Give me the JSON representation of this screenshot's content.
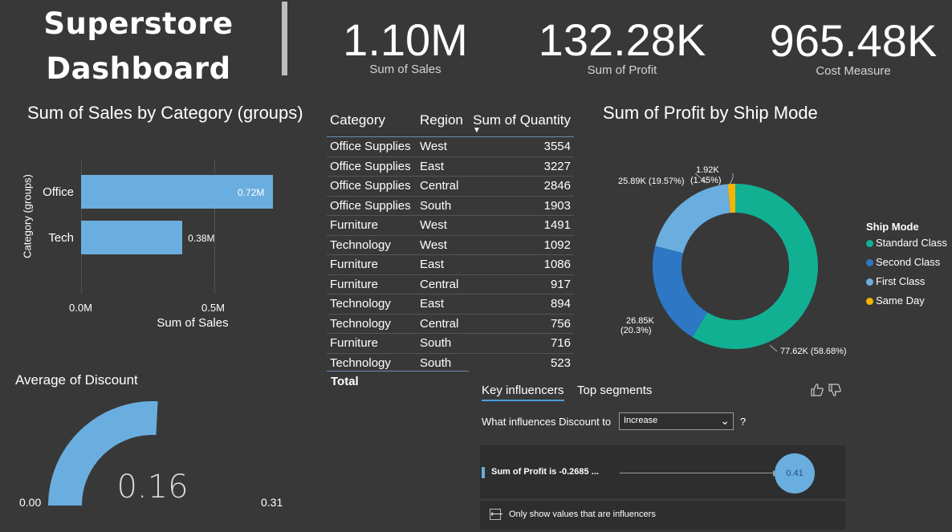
{
  "header": {
    "title_line1": "Superstore",
    "title_line2": "Dashboard",
    "kpis": [
      {
        "value": "1.10M",
        "label": "Sum of Sales"
      },
      {
        "value": "132.28K",
        "label": "Sum of Profit"
      },
      {
        "value": "965.48K",
        "label": "Cost Measure"
      }
    ]
  },
  "sales_chart": {
    "title": "Sum of Sales by Category (groups)",
    "y_axis_title": "Category (groups)",
    "x_axis_title": "Sum of Sales",
    "ticks": [
      "0.0M",
      "0.5M"
    ]
  },
  "table": {
    "headers": {
      "category": "Category",
      "region": "Region",
      "quantity": "Sum of Quantity"
    },
    "sort_indicator": "▼",
    "rows": [
      {
        "category": "Office Supplies",
        "region": "West",
        "quantity": "3554"
      },
      {
        "category": "Office Supplies",
        "region": "East",
        "quantity": "3227"
      },
      {
        "category": "Office Supplies",
        "region": "Central",
        "quantity": "2846"
      },
      {
        "category": "Office Supplies",
        "region": "South",
        "quantity": "1903"
      },
      {
        "category": "Furniture",
        "region": "West",
        "quantity": "1491"
      },
      {
        "category": "Technology",
        "region": "West",
        "quantity": "1092"
      },
      {
        "category": "Furniture",
        "region": "East",
        "quantity": "1086"
      },
      {
        "category": "Furniture",
        "region": "Central",
        "quantity": "917"
      },
      {
        "category": "Technology",
        "region": "East",
        "quantity": "894"
      },
      {
        "category": "Technology",
        "region": "Central",
        "quantity": "756"
      },
      {
        "category": "Furniture",
        "region": "South",
        "quantity": "716"
      },
      {
        "category": "Technology",
        "region": "South",
        "quantity": "523"
      }
    ],
    "total_label": "Total"
  },
  "donut": {
    "title": "Sum of Profit by Ship Mode",
    "legend_title": "Ship Mode",
    "labels": {
      "standard": "77.62K (58.68%)",
      "second_value": "26.85K",
      "second_pct": "(20.3%)",
      "first": "25.89K (19.57%)",
      "sameday_value": "1.92K",
      "sameday_pct": "(1.45%)"
    }
  },
  "gauge": {
    "title": "Average of Discount",
    "value": "0.16",
    "min": "0.00",
    "max": "0.31"
  },
  "influencers": {
    "tab_active": "Key influencers",
    "tab_other": "Top segments",
    "question": "What influences Discount to",
    "select_value": "Increase",
    "help": "?",
    "factor": "Sum of Profit is -0.2685 ...",
    "bubble_value": "0.41",
    "checkbox_label": "Only show values that are influencers"
  },
  "chart_data": [
    {
      "type": "bar",
      "orientation": "horizontal",
      "title": "Sum of Sales by Category (groups)",
      "categories": [
        "Office",
        "Tech"
      ],
      "values": [
        0.72,
        0.38
      ],
      "value_labels": [
        "0.72M",
        "0.38M"
      ],
      "unit": "M",
      "xlabel": "Sum of Sales",
      "ylabel": "Category (groups)",
      "xlim": [
        0,
        0.72
      ]
    },
    {
      "type": "pie",
      "variant": "donut",
      "title": "Sum of Profit by Ship Mode",
      "categories": [
        "Standard Class",
        "Second Class",
        "First Class",
        "Same Day"
      ],
      "values": [
        77.62,
        26.85,
        25.89,
        1.92
      ],
      "percents": [
        58.68,
        20.3,
        19.57,
        1.45
      ],
      "colors": [
        "#12b093",
        "#2d77c4",
        "#6aaedf",
        "#f4b400"
      ],
      "legend": "right"
    },
    {
      "type": "gauge",
      "title": "Average of Discount",
      "value": 0.16,
      "min": 0.0,
      "max": 0.31
    }
  ]
}
